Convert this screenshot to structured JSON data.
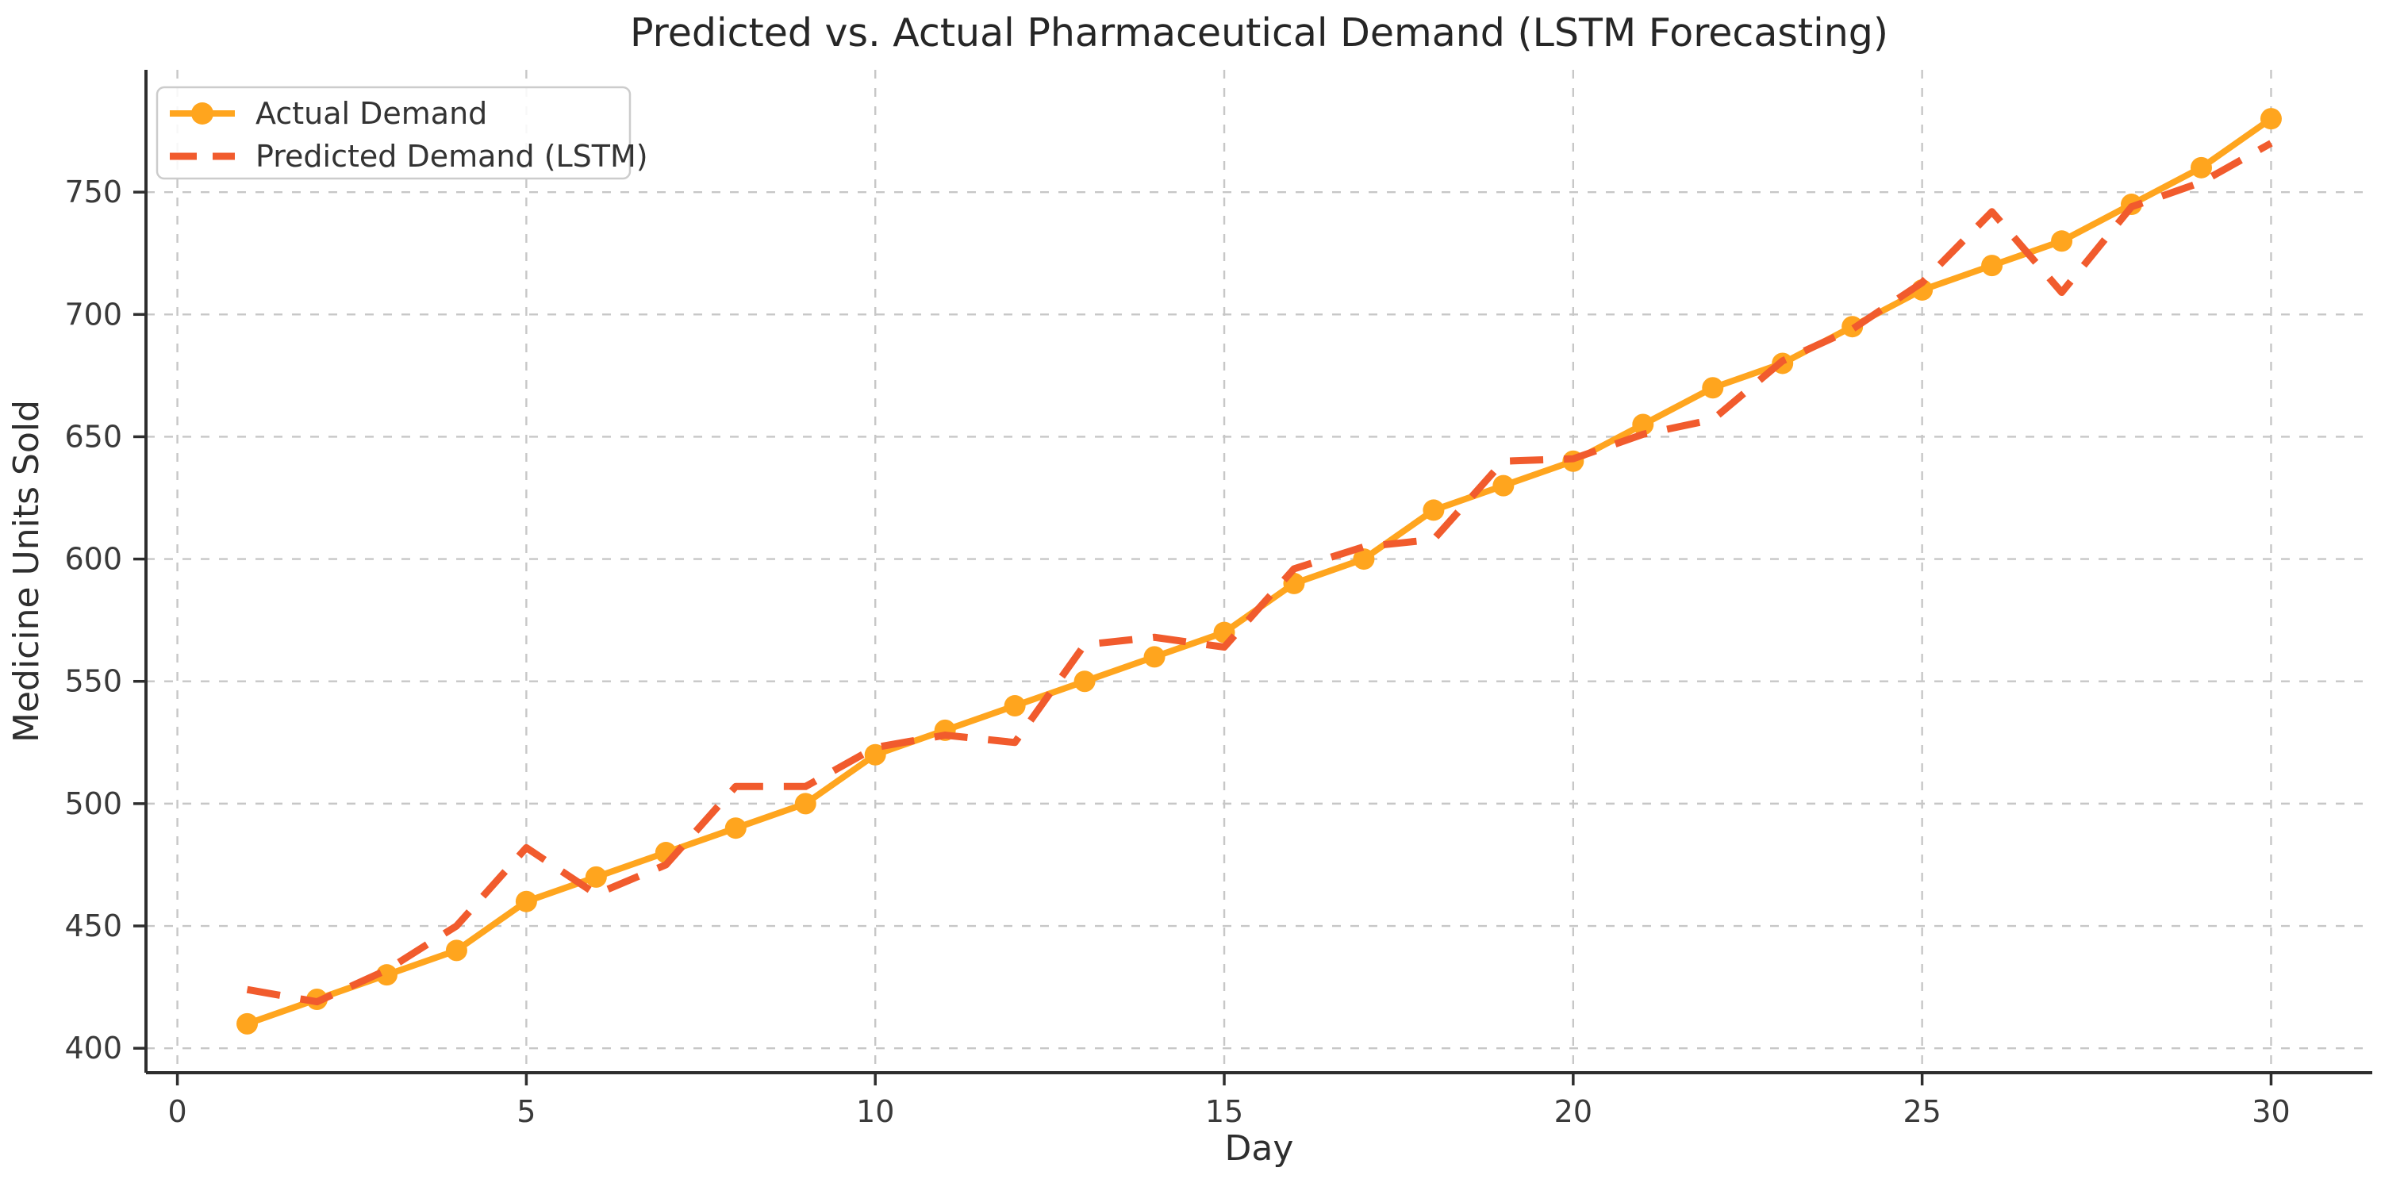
{
  "figure": {
    "title": "Predicted vs. Actual Pharmaceutical Demand (LSTM Forecasting)",
    "xlabel": "Day",
    "ylabel": "Medicine Units Sold"
  },
  "legend": {
    "position": "upper left",
    "items": [
      {
        "label": "Actual Demand",
        "swatch": "solid-line-circle-marker",
        "color": "#FFA51E"
      },
      {
        "label": "Predicted Demand (LSTM)",
        "swatch": "dashed-line",
        "color": "#F15B2D"
      }
    ]
  },
  "chart_data": {
    "type": "line",
    "title": "Predicted vs. Actual Pharmaceutical Demand (LSTM Forecasting)",
    "xlabel": "Day",
    "ylabel": "Medicine Units Sold",
    "x": [
      1,
      2,
      3,
      4,
      5,
      6,
      7,
      8,
      9,
      10,
      11,
      12,
      13,
      14,
      15,
      16,
      17,
      18,
      19,
      20,
      21,
      22,
      23,
      24,
      25,
      26,
      27,
      28,
      29,
      30
    ],
    "series": [
      {
        "name": "Actual Demand",
        "color": "#FFA51E",
        "linestyle": "solid",
        "marker": "circle",
        "values": [
          410,
          420,
          430,
          440,
          460,
          470,
          480,
          490,
          500,
          520,
          530,
          540,
          550,
          560,
          570,
          590,
          600,
          620,
          630,
          640,
          655,
          670,
          680,
          695,
          710,
          720,
          730,
          745,
          760,
          780
        ]
      },
      {
        "name": "Predicted Demand (LSTM)",
        "color": "#F15B2D",
        "linestyle": "dashed",
        "marker": "none",
        "values": [
          424,
          419,
          432,
          450,
          482,
          463,
          475,
          507,
          507,
          523,
          528,
          525,
          565,
          568,
          564,
          596,
          605,
          608,
          640,
          641,
          651,
          657,
          681,
          694,
          713,
          742,
          709,
          744,
          754,
          770
        ]
      }
    ],
    "xticks": [
      0,
      5,
      10,
      15,
      20,
      25,
      30
    ],
    "yticks": [
      400,
      450,
      500,
      550,
      600,
      650,
      700,
      750
    ],
    "xlim": [
      -0.45,
      31.45
    ],
    "ylim": [
      390,
      800
    ],
    "grid": true,
    "grid_style": "dashed",
    "grid_color": "#c7c7c7",
    "spine_color": "#2e2e2e",
    "legend_position": "upper left"
  }
}
